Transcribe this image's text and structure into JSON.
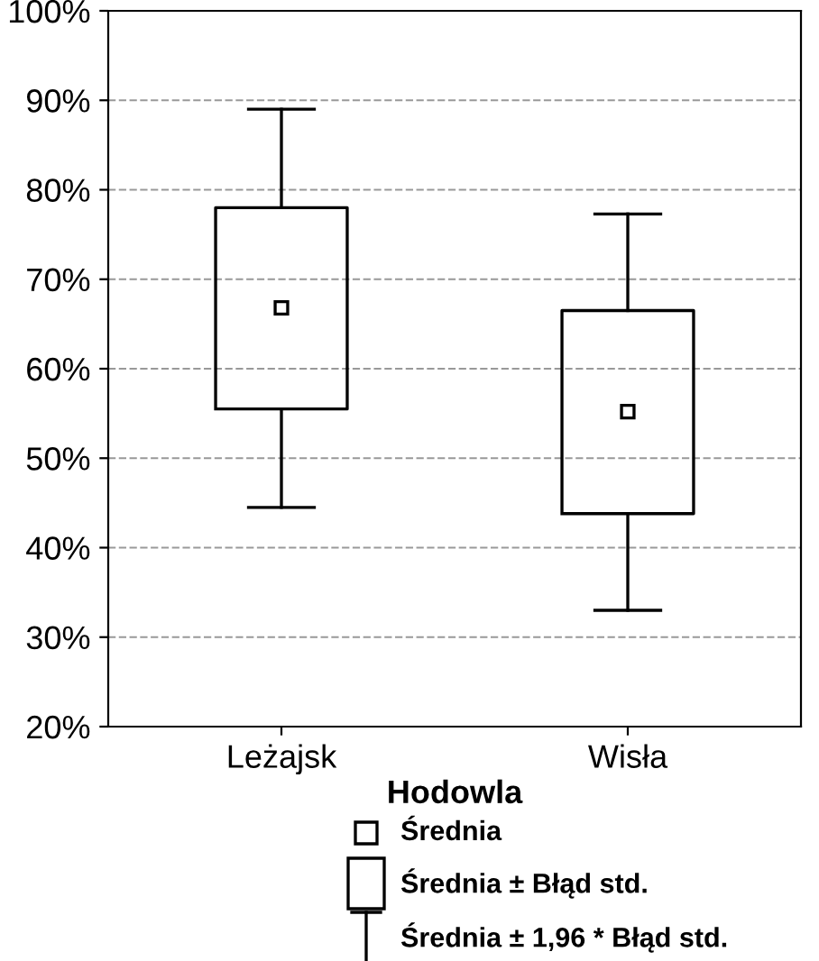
{
  "chart_data": {
    "type": "box",
    "xlabel": "Hodowla",
    "categories": [
      "Leżajsk",
      "Wisła"
    ],
    "boxes": [
      {
        "low": 44.5,
        "q1": 55.5,
        "median": 66.8,
        "q3": 78,
        "high": 89
      },
      {
        "low": 33,
        "q1": 43.8,
        "median": 55.2,
        "q3": 66.5,
        "high": 77.3
      }
    ],
    "ylim": [
      20,
      100
    ],
    "yticks": [
      {
        "value": 20,
        "label": "20%"
      },
      {
        "value": 30,
        "label": "30%"
      },
      {
        "value": 40,
        "label": "40%"
      },
      {
        "value": 50,
        "label": "50%"
      },
      {
        "value": 60,
        "label": "60%"
      },
      {
        "value": 70,
        "label": "70%"
      },
      {
        "value": 80,
        "label": "80%"
      },
      {
        "value": 90,
        "label": "90%"
      },
      {
        "value": 100,
        "label": "100%"
      }
    ],
    "grid": "y",
    "annotations": [
      "Średnia",
      "Średnia ± Błąd std.",
      "Średnia ± 1,96 * Błąd std."
    ]
  }
}
